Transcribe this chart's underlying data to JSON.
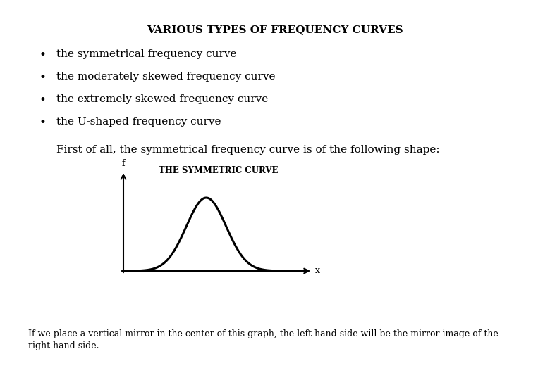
{
  "title": "VARIOUS TYPES OF FREQUENCY CURVES",
  "bullet_items": [
    "the symmetrical frequency curve",
    "the moderately skewed frequency curve",
    "the extremely skewed frequency curve",
    "the U-shaped frequency curve"
  ],
  "paragraph": "First of all, the symmetrical frequency curve is of the following shape:",
  "curve_title": "THE SYMMETRIC CURVE",
  "x_label": "x",
  "y_label": "f",
  "footer_line1": "If we place a vertical mirror in the center of this graph, the left hand side will be the mirror image of the",
  "footer_line2": "right hand side.",
  "background_color": "#ffffff",
  "text_color": "#000000",
  "curve_color": "#000000",
  "title_fontsize": 11,
  "body_fontsize": 11,
  "curve_title_fontsize": 8.5,
  "footer_fontsize": 9
}
